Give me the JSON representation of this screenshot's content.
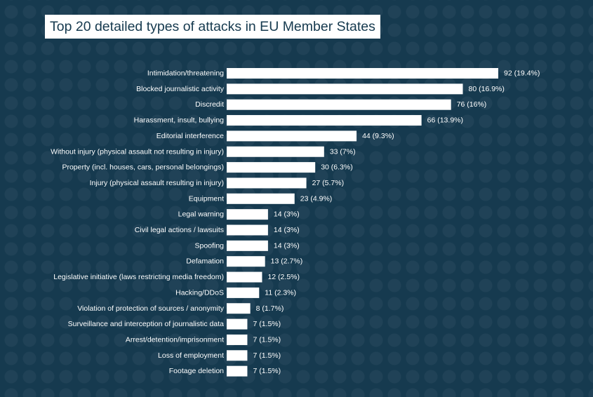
{
  "chart_data": {
    "type": "bar",
    "orientation": "horizontal",
    "title": "Top 20 detailed types of attacks in EU Member States",
    "categories": [
      "Intimidation/threatening",
      "Blocked journalistic activity",
      "Discredit",
      "Harassment, insult, bullying",
      "Editorial interference",
      "Without injury (physical assault not resulting in injury)",
      "Property (incl. houses, cars, personal belongings)",
      "Injury (physical assault resulting in injury)",
      "Equipment",
      "Legal warning",
      "Civil legal actions / lawsuits",
      "Spoofing",
      "Defamation",
      "Legislative initiative (laws restricting media freedom)",
      "Hacking/DDoS",
      "Violation of protection of sources / anonymity",
      "Surveillance and interception of journalistic data",
      "Arrest/detention/imprisonment",
      "Loss of employment",
      "Footage deletion"
    ],
    "values": [
      92,
      80,
      76,
      66,
      44,
      33,
      30,
      27,
      23,
      14,
      14,
      14,
      13,
      12,
      11,
      8,
      7,
      7,
      7,
      7
    ],
    "value_labels": [
      "92 (19.4%)",
      "80 (16.9%)",
      "76 (16%)",
      "66 (13.9%)",
      "44 (9.3%)",
      "33 (7%)",
      "30 (6.3%)",
      "27 (5.7%)",
      "23 (4.9%)",
      "14 (3%)",
      "14 (3%)",
      "14 (3%)",
      "13 (2.7%)",
      "12 (2.5%)",
      "11 (2.3%)",
      "8 (1.7%)",
      "7 (1.5%)",
      "7 (1.5%)",
      "7 (1.5%)",
      "7 (1.5%)"
    ],
    "xlim": [
      0,
      92
    ],
    "grid": false,
    "legend": "none",
    "colors": {
      "background": "#163a4f",
      "bar": "#ffffff",
      "text": "#ffffff",
      "title_text": "#163a4f",
      "title_box": "#ffffff"
    }
  }
}
